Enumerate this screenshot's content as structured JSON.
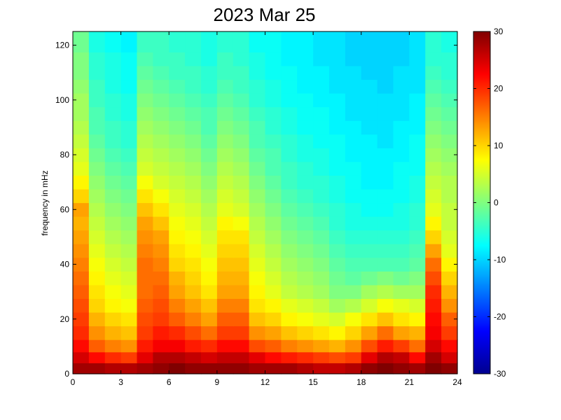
{
  "chart_data": {
    "type": "heatmap",
    "title": "2023 Mar 25",
    "xlabel": "",
    "ylabel": "frequency in mHz",
    "xlim": [
      0,
      24
    ],
    "ylim": [
      0,
      125
    ],
    "x_ticks": [
      0,
      3,
      6,
      9,
      12,
      15,
      18,
      21,
      24
    ],
    "y_ticks": [
      0,
      20,
      40,
      60,
      80,
      100,
      120
    ],
    "colorbar": {
      "colormap": "jet",
      "range": [
        -30,
        30
      ],
      "ticks": [
        -30,
        -20,
        -10,
        0,
        10,
        20,
        30
      ]
    },
    "time_bins_hours": [
      0.5,
      1.5,
      2.5,
      3.5,
      4.5,
      5.5,
      6.5,
      7.5,
      8.5,
      9.5,
      10.5,
      11.5,
      12.5,
      13.5,
      14.5,
      15.5,
      16.5,
      17.5,
      18.5,
      19.5,
      20.5,
      21.5,
      22.5,
      23.5
    ],
    "freq_bins_mhz": [
      2,
      6,
      10,
      15,
      20,
      25,
      30,
      35,
      40,
      45,
      50,
      55,
      60,
      65,
      70,
      75,
      80,
      85,
      90,
      95,
      100,
      105,
      110,
      115,
      120
    ],
    "values": [
      [
        28,
        28,
        27,
        27,
        28,
        29,
        30,
        29,
        29,
        29,
        29,
        28,
        28,
        28,
        27,
        26,
        26,
        27,
        29,
        30,
        29,
        28,
        30,
        29
      ],
      [
        25,
        22,
        20,
        19,
        24,
        27,
        27,
        26,
        25,
        26,
        26,
        24,
        22,
        21,
        20,
        19,
        18,
        19,
        24,
        27,
        26,
        22,
        28,
        25
      ],
      [
        22,
        17,
        15,
        14,
        21,
        23,
        23,
        21,
        20,
        22,
        22,
        18,
        17,
        15,
        14,
        13,
        12,
        14,
        18,
        21,
        19,
        16,
        25,
        22
      ],
      [
        20,
        14,
        12,
        11,
        19,
        21,
        20,
        18,
        16,
        19,
        19,
        14,
        13,
        11,
        10,
        9,
        8,
        10,
        13,
        16,
        13,
        12,
        23,
        19
      ],
      [
        19,
        12,
        10,
        9,
        18,
        19,
        17,
        15,
        13,
        17,
        17,
        11,
        10,
        8,
        7,
        6,
        5,
        7,
        9,
        11,
        9,
        8,
        22,
        17
      ],
      [
        18,
        10,
        8,
        7,
        17,
        18,
        15,
        13,
        11,
        15,
        15,
        9,
        8,
        6,
        5,
        4,
        2,
        3,
        5,
        7,
        6,
        5,
        21,
        14
      ],
      [
        17,
        9,
        7,
        6,
        16,
        17,
        13,
        11,
        9,
        13,
        13,
        8,
        6,
        4,
        3,
        2,
        0,
        0,
        2,
        3,
        2,
        2,
        20,
        12
      ],
      [
        16,
        8,
        6,
        5,
        16,
        16,
        12,
        10,
        8,
        12,
        12,
        7,
        5,
        3,
        2,
        1,
        -1,
        -2,
        -1,
        0,
        -1,
        0,
        18,
        10
      ],
      [
        15,
        7,
        5,
        4,
        16,
        15,
        10,
        9,
        7,
        11,
        11,
        6,
        4,
        2,
        1,
        0,
        -2,
        -3,
        -3,
        -3,
        -3,
        -2,
        16,
        8
      ],
      [
        14,
        6,
        4,
        3,
        15,
        14,
        9,
        8,
        6,
        10,
        10,
        5,
        3,
        1,
        0,
        -1,
        -3,
        -4,
        -4,
        -4,
        -4,
        -3,
        13,
        6
      ],
      [
        13,
        5,
        3,
        2,
        14,
        13,
        8,
        7,
        5,
        9,
        9,
        4,
        2,
        0,
        -1,
        -2,
        -4,
        -5,
        -5,
        -5,
        -5,
        -4,
        10,
        5
      ],
      [
        12,
        4,
        2,
        1,
        13,
        11,
        7,
        6,
        4,
        8,
        7,
        3,
        1,
        -1,
        -2,
        -3,
        -5,
        -6,
        -6,
        -6,
        -6,
        -5,
        8,
        4
      ],
      [
        13,
        3,
        1,
        0,
        11,
        9,
        6,
        5,
        3,
        6,
        5,
        2,
        0,
        -2,
        -3,
        -4,
        -5,
        -6,
        -7,
        -7,
        -6,
        -5,
        6,
        4
      ],
      [
        10,
        2,
        0,
        -1,
        9,
        7,
        5,
        4,
        2,
        5,
        4,
        1,
        -1,
        -3,
        -4,
        -5,
        -6,
        -7,
        -7,
        -7,
        -7,
        -6,
        5,
        3
      ],
      [
        8,
        1,
        -1,
        -2,
        7,
        5,
        4,
        3,
        1,
        4,
        3,
        0,
        -2,
        -4,
        -5,
        -5,
        -6,
        -7,
        -8,
        -8,
        -7,
        -6,
        4,
        3
      ],
      [
        6,
        0,
        -2,
        -3,
        5,
        4,
        3,
        2,
        0,
        3,
        2,
        -1,
        -3,
        -4,
        -5,
        -6,
        -7,
        -7,
        -8,
        -8,
        -7,
        -7,
        3,
        2
      ],
      [
        5,
        -1,
        -3,
        -4,
        4,
        3,
        2,
        1,
        -1,
        2,
        1,
        -2,
        -3,
        -5,
        -6,
        -6,
        -7,
        -8,
        -8,
        -8,
        -8,
        -7,
        2,
        1
      ],
      [
        4,
        -2,
        -4,
        -5,
        3,
        2,
        1,
        0,
        -2,
        1,
        0,
        -3,
        -4,
        -5,
        -6,
        -7,
        -7,
        -8,
        -8,
        -9,
        -8,
        -7,
        1,
        0
      ],
      [
        3,
        -3,
        -4,
        -5,
        2,
        1,
        0,
        -1,
        -3,
        0,
        -1,
        -3,
        -5,
        -6,
        -7,
        -7,
        -8,
        -8,
        -9,
        -9,
        -8,
        -8,
        0,
        -1
      ],
      [
        2,
        -3,
        -5,
        -6,
        1,
        0,
        -1,
        -2,
        -3,
        -1,
        -2,
        -4,
        -5,
        -6,
        -7,
        -7,
        -8,
        -9,
        -9,
        -9,
        -9,
        -8,
        -1,
        -2
      ],
      [
        2,
        -4,
        -5,
        -6,
        0,
        -1,
        -2,
        -3,
        -4,
        -2,
        -3,
        -5,
        -6,
        -7,
        -7,
        -8,
        -8,
        -9,
        -9,
        -9,
        -9,
        -8,
        -2,
        -3
      ],
      [
        1,
        -4,
        -6,
        -7,
        -1,
        -2,
        -3,
        -4,
        -5,
        -3,
        -4,
        -5,
        -6,
        -7,
        -8,
        -8,
        -9,
        -9,
        -9,
        -10,
        -9,
        -9,
        -3,
        -4
      ],
      [
        0,
        -5,
        -6,
        -7,
        -2,
        -3,
        -4,
        -4,
        -5,
        -4,
        -4,
        -6,
        -7,
        -7,
        -8,
        -8,
        -9,
        -9,
        -10,
        -10,
        -9,
        -9,
        -4,
        -5
      ],
      [
        0,
        -5,
        -6,
        -7,
        -3,
        -4,
        -4,
        -5,
        -6,
        -4,
        -5,
        -6,
        -7,
        -8,
        -8,
        -9,
        -9,
        -10,
        -10,
        -10,
        -10,
        -9,
        -5,
        -5
      ],
      [
        -1,
        -6,
        -7,
        -8,
        -4,
        -4,
        -5,
        -5,
        -6,
        -5,
        -5,
        -7,
        -7,
        -8,
        -8,
        -9,
        -9,
        -10,
        -10,
        -10,
        -10,
        -9,
        -5,
        -6
      ]
    ]
  }
}
